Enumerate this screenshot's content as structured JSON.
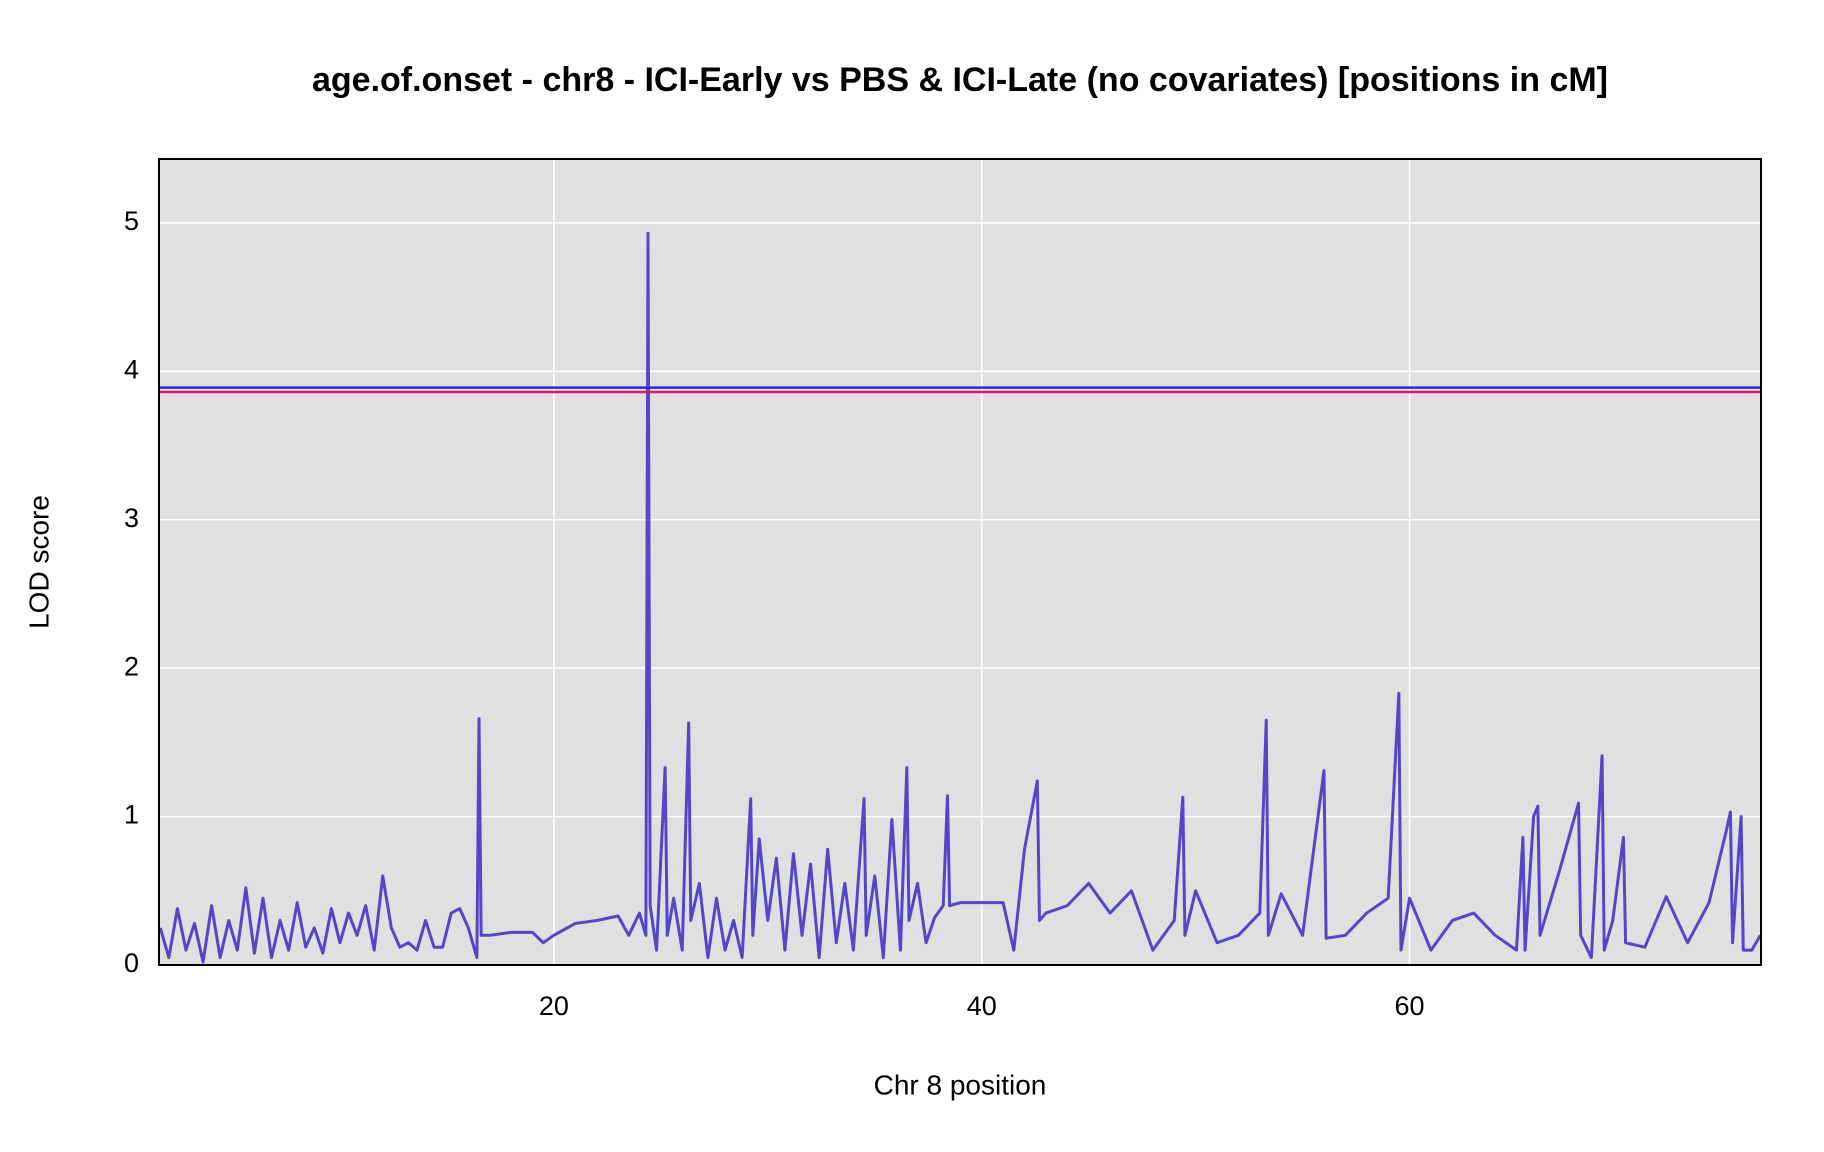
{
  "chart_data": {
    "type": "line",
    "title": "age.of.onset - chr8 - ICI-Early vs PBS & ICI-Late (no covariates) [positions in cM]",
    "x_label": "Chr 8 position",
    "y_label": "LOD score",
    "xlim": [
      1.54,
      76.43
    ],
    "ylim": [
      0,
      5.43
    ],
    "xticks": [
      20,
      40,
      60
    ],
    "yticks": [
      0,
      1,
      2,
      3,
      4,
      5
    ],
    "grid": true,
    "thresholds": [
      {
        "value": 3.89,
        "color": "#2b2bd6"
      },
      {
        "value": 3.86,
        "color": "#e3127a"
      }
    ],
    "x": [
      1.6,
      2.0,
      2.4,
      2.8,
      3.2,
      3.6,
      4.0,
      4.4,
      4.8,
      5.2,
      5.6,
      6.0,
      6.4,
      6.8,
      7.2,
      7.6,
      8.0,
      8.4,
      8.8,
      9.2,
      9.6,
      10.0,
      10.4,
      10.8,
      11.2,
      11.6,
      12.0,
      12.4,
      12.8,
      13.2,
      13.6,
      14.0,
      14.4,
      14.8,
      15.2,
      15.6,
      16.0,
      16.4,
      16.5,
      16.6,
      17.0,
      18.0,
      19.0,
      19.5,
      20.0,
      21.0,
      22.0,
      23.0,
      23.5,
      24.0,
      24.3,
      24.4,
      24.5,
      24.8,
      25.2,
      25.3,
      25.6,
      26.0,
      26.3,
      26.4,
      26.8,
      27.2,
      27.6,
      28.0,
      28.4,
      28.8,
      29.2,
      29.3,
      29.6,
      30.0,
      30.4,
      30.8,
      31.2,
      31.6,
      32.0,
      32.4,
      32.8,
      33.2,
      33.6,
      34.0,
      34.5,
      34.6,
      35.0,
      35.4,
      35.8,
      36.2,
      36.5,
      36.6,
      37.0,
      37.4,
      37.8,
      38.2,
      38.4,
      38.5,
      39.0,
      40.0,
      41.0,
      41.5,
      42.0,
      42.6,
      42.7,
      43.0,
      44.0,
      45.0,
      46.0,
      47.0,
      48.0,
      49.0,
      49.4,
      49.5,
      50.0,
      51.0,
      52.0,
      53.0,
      53.3,
      53.4,
      54.0,
      55.0,
      56.0,
      56.1,
      57.0,
      58.0,
      59.0,
      59.5,
      59.6,
      60.0,
      61.0,
      62.0,
      63.0,
      64.0,
      65.0,
      65.3,
      65.4,
      65.8,
      66.0,
      66.1,
      67.0,
      67.9,
      68.0,
      68.5,
      69.0,
      69.1,
      69.5,
      70.0,
      70.1,
      71.0,
      72.0,
      73.0,
      74.0,
      74.8,
      75.0,
      75.1,
      75.5,
      75.6,
      76.0,
      76.4
    ],
    "series": [
      {
        "color": "#5546c8",
        "values": [
          0.25,
          0.05,
          0.38,
          0.1,
          0.28,
          0.02,
          0.4,
          0.05,
          0.3,
          0.1,
          0.52,
          0.08,
          0.45,
          0.05,
          0.3,
          0.1,
          0.42,
          0.12,
          0.25,
          0.08,
          0.38,
          0.15,
          0.35,
          0.2,
          0.4,
          0.1,
          0.6,
          0.25,
          0.12,
          0.15,
          0.1,
          0.3,
          0.12,
          0.12,
          0.35,
          0.38,
          0.25,
          0.05,
          1.66,
          0.2,
          0.2,
          0.22,
          0.22,
          0.15,
          0.2,
          0.28,
          0.3,
          0.33,
          0.2,
          0.35,
          0.2,
          4.93,
          0.4,
          0.1,
          1.33,
          0.2,
          0.45,
          0.1,
          1.63,
          0.3,
          0.55,
          0.05,
          0.45,
          0.1,
          0.3,
          0.05,
          1.12,
          0.2,
          0.85,
          0.3,
          0.72,
          0.1,
          0.75,
          0.2,
          0.68,
          0.05,
          0.78,
          0.15,
          0.55,
          0.1,
          1.12,
          0.2,
          0.6,
          0.05,
          0.98,
          0.1,
          1.33,
          0.3,
          0.55,
          0.15,
          0.32,
          0.4,
          1.14,
          0.4,
          0.42,
          0.42,
          0.42,
          0.1,
          0.78,
          1.24,
          0.3,
          0.35,
          0.4,
          0.55,
          0.35,
          0.5,
          0.1,
          0.3,
          1.13,
          0.2,
          0.5,
          0.15,
          0.2,
          0.35,
          1.65,
          0.2,
          0.48,
          0.2,
          1.31,
          0.18,
          0.2,
          0.35,
          0.45,
          1.83,
          0.1,
          0.45,
          0.1,
          0.3,
          0.35,
          0.2,
          0.1,
          0.86,
          0.1,
          1.0,
          1.07,
          0.2,
          0.63,
          1.09,
          0.2,
          0.05,
          1.41,
          0.1,
          0.3,
          0.86,
          0.15,
          0.12,
          0.46,
          0.15,
          0.42,
          0.9,
          1.03,
          0.15,
          1.0,
          0.1,
          0.1,
          0.2
        ]
      }
    ]
  }
}
